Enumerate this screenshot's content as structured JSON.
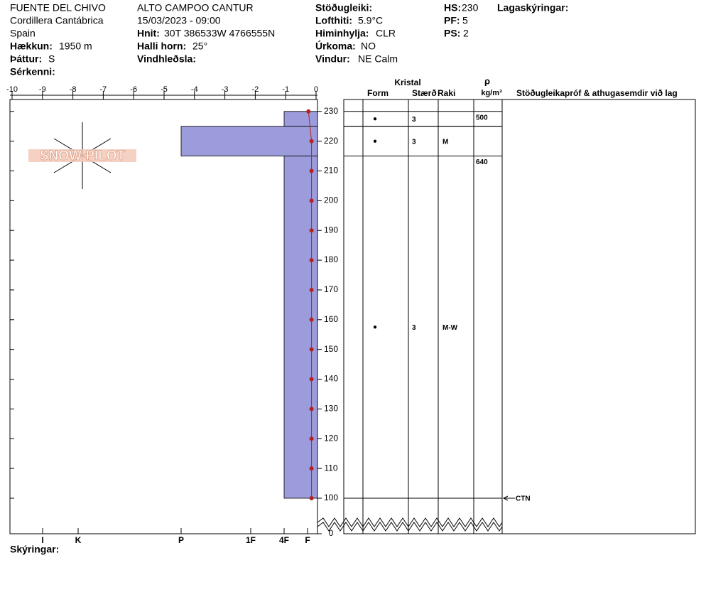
{
  "header": {
    "site": "FUENTE DEL CHIVO",
    "range": "Cordillera Cantábrica",
    "country": "Spain",
    "elevation": {
      "label": "Hækkun:",
      "value": "1950 m"
    },
    "aspect": {
      "label": "Þáttur:",
      "value": "S"
    },
    "specifics": {
      "label": "Sérkenni:"
    },
    "location": "ALTO CAMPOO CANTUR",
    "datetime": "15/03/2023 - 09:00",
    "coords": {
      "label": "Hnit:",
      "value": "30T 386533W 4766555N"
    },
    "slope": {
      "label": "Halli horn:",
      "value": "25°"
    },
    "wind_loading": {
      "label": "Vindhleðsla:"
    },
    "stability": {
      "label": "Stöðugleiki:"
    },
    "air_temp": {
      "label": "Lofthiti:",
      "value": "5.9°C"
    },
    "sky": {
      "label": "Himinhylja:",
      "value": "CLR"
    },
    "precip": {
      "label": "Úrkoma:",
      "value": "NO"
    },
    "wind": {
      "label": "Vindur:",
      "value": "NE Calm"
    },
    "hs": {
      "label": "HS:",
      "value": "230"
    },
    "pf": {
      "label": "PF:",
      "value": "5"
    },
    "ps": {
      "label": "PS:",
      "value": "2"
    },
    "layer_notes": {
      "label": "Lagaskýringar:"
    }
  },
  "logo": "SNOW PILOT",
  "footer": {
    "notes": "Skýringar:"
  },
  "chart_data": {
    "type": "snow-profile",
    "xlim": [
      -10,
      0
    ],
    "xticks": [
      -10,
      -9,
      -8,
      -7,
      -6,
      -5,
      -4,
      -3,
      -2,
      -1,
      0
    ],
    "ylim": [
      0,
      234
    ],
    "yticks": [
      0,
      100,
      110,
      120,
      130,
      140,
      150,
      160,
      170,
      180,
      190,
      200,
      210,
      220,
      230
    ],
    "axis_break": [
      0,
      100
    ],
    "hardness_ticks": [
      {
        "value": 1,
        "label": "F"
      },
      {
        "value": 2,
        "label": "4F"
      },
      {
        "value": 3,
        "label": "1F"
      },
      {
        "value": 4,
        "label": "P"
      },
      {
        "value": 5,
        "label": "K"
      },
      {
        "value": 6,
        "label": "I"
      }
    ],
    "hardness_color": "#9c9cdc",
    "temperature": {
      "color": "#b22222",
      "heights": [
        230,
        220,
        210,
        200,
        190,
        180,
        170,
        160,
        150,
        140,
        130,
        120,
        110,
        100
      ],
      "values": [
        -0.25,
        -0.15,
        -0.15,
        -0.15,
        -0.15,
        -0.15,
        -0.15,
        -0.15,
        -0.15,
        -0.15,
        -0.15,
        -0.15,
        -0.15,
        -0.15
      ]
    },
    "columns": {
      "crystal": "Kristal",
      "form": "Form",
      "size": "Stærð",
      "moisture": "Raki",
      "density_symbol": "ρ",
      "density_unit": "kg/m³",
      "tests": "Stöðugleikapróf & athugasemdir við lag"
    },
    "layers": [
      {
        "top": 230,
        "bottom": 225,
        "hardness": 2,
        "form": "●",
        "size": 3,
        "density": 500
      },
      {
        "top": 225,
        "bottom": 215,
        "hardness": 4,
        "form": "●",
        "size": 3,
        "moisture": "M"
      },
      {
        "top": 215,
        "bottom": 100,
        "hardness": 2,
        "form": "●",
        "size": 3,
        "moisture": "M-W",
        "density": 640
      }
    ],
    "tests": [
      {
        "height": 100,
        "label": "CTN"
      }
    ]
  }
}
